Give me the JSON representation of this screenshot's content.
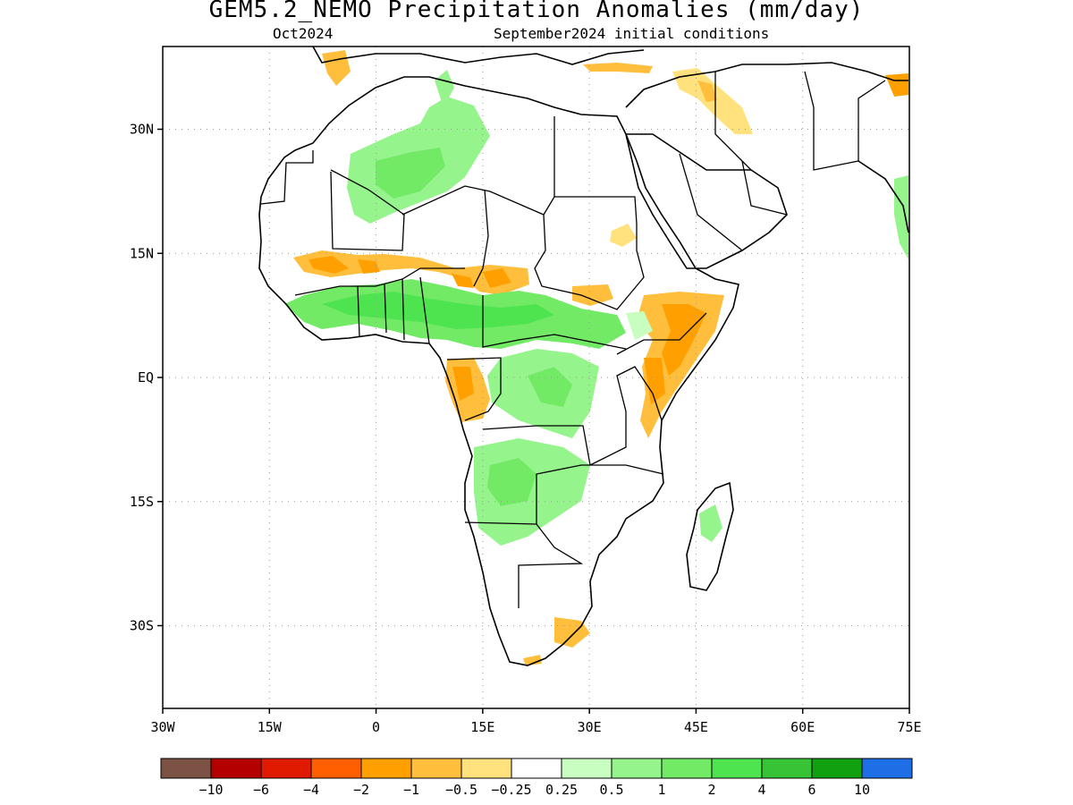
{
  "title": "GEM5.2_NEMO Precipitation Anomalies (mm/day)",
  "subtitle_left": "Oct2024",
  "subtitle_right": "September2024 initial conditions",
  "map": {
    "lon_range": [
      -30,
      75
    ],
    "lat_range": [
      -40,
      40
    ],
    "lon_ticks": [
      {
        "value": -30,
        "label": "30W"
      },
      {
        "value": -15,
        "label": "15W"
      },
      {
        "value": 0,
        "label": "0"
      },
      {
        "value": 15,
        "label": "15E"
      },
      {
        "value": 30,
        "label": "30E"
      },
      {
        "value": 45,
        "label": "45E"
      },
      {
        "value": 60,
        "label": "60E"
      },
      {
        "value": 75,
        "label": "75E"
      }
    ],
    "lat_ticks": [
      {
        "value": 30,
        "label": "30N"
      },
      {
        "value": 15,
        "label": "15N"
      },
      {
        "value": 0,
        "label": "EQ"
      },
      {
        "value": -15,
        "label": "15S"
      },
      {
        "value": -30,
        "label": "30S"
      }
    ],
    "grid": true
  },
  "colorbar": {
    "colors": [
      "#7b5244",
      "#b50000",
      "#e01a00",
      "#ff5f00",
      "#ffa000",
      "#ffbe3c",
      "#ffe27e",
      "#ffffff",
      "#c8ffc0",
      "#96f48c",
      "#72ea66",
      "#4ee450",
      "#36c436",
      "#10a010",
      "#1e6ee6"
    ],
    "labels": [
      "−10",
      "−6",
      "−4",
      "−2",
      "−1",
      "−0.5",
      "−0.25",
      "0.25",
      "0.5",
      "1",
      "2",
      "4",
      "6",
      "10"
    ]
  }
}
